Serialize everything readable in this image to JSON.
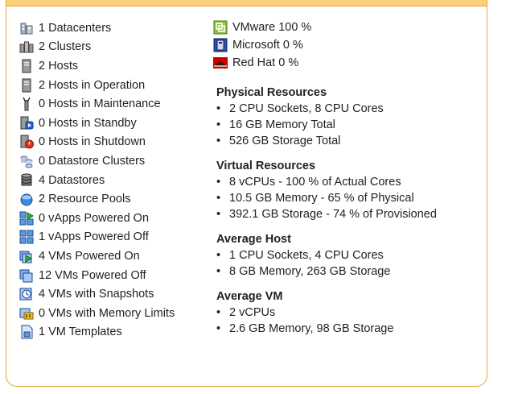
{
  "inventory": [
    {
      "icon": "datacenter-icon",
      "label": "1 Datacenters"
    },
    {
      "icon": "cluster-icon",
      "label": "2 Clusters"
    },
    {
      "icon": "host-icon",
      "label": "2 Hosts"
    },
    {
      "icon": "host-operation-icon",
      "label": "2 Hosts in Operation"
    },
    {
      "icon": "maintenance-icon",
      "label": "0 Hosts in Maintenance"
    },
    {
      "icon": "standby-icon",
      "label": "0 Hosts in Standby"
    },
    {
      "icon": "shutdown-icon",
      "label": "0 Hosts in Shutdown"
    },
    {
      "icon": "datastore-cluster-icon",
      "label": "0 Datastore Clusters"
    },
    {
      "icon": "datastore-icon",
      "label": "4 Datastores"
    },
    {
      "icon": "resource-pool-icon",
      "label": "2 Resource Pools"
    },
    {
      "icon": "vapp-on-icon",
      "label": "0 vApps Powered On"
    },
    {
      "icon": "vapp-off-icon",
      "label": "1 vApps Powered Off"
    },
    {
      "icon": "vm-on-icon",
      "label": "4 VMs Powered On"
    },
    {
      "icon": "vm-off-icon",
      "label": "12 VMs Powered Off"
    },
    {
      "icon": "snapshot-icon",
      "label": "4 VMs with Snapshots"
    },
    {
      "icon": "memory-limit-icon",
      "label": "0 VMs with Memory Limits"
    },
    {
      "icon": "template-icon",
      "label": "1 VM Templates"
    }
  ],
  "os": [
    {
      "icon": "vmware-icon",
      "label": "VMware 100 %"
    },
    {
      "icon": "microsoft-icon",
      "label": "Microsoft 0 %"
    },
    {
      "icon": "redhat-icon",
      "label": "Red Hat 0 %"
    }
  ],
  "sections": [
    {
      "title": "Physical Resources",
      "items": [
        "2 CPU Sockets, 8 CPU Cores",
        "16 GB Memory Total",
        "526 GB Storage Total"
      ]
    },
    {
      "title": "Virtual Resources",
      "items": [
        "8 vCPUs - 100 % of Actual Cores",
        "10.5 GB Memory - 65 % of Physical",
        "392.1 GB Storage - 74 % of Provisioned"
      ]
    },
    {
      "title": "Average Host",
      "items": [
        "1 CPU Sockets, 4 CPU Cores",
        "8 GB Memory, 263 GB Storage"
      ]
    },
    {
      "title": "Average VM",
      "items": [
        "2 vCPUs",
        "2.6 GB Memory, 98 GB Storage"
      ]
    }
  ]
}
